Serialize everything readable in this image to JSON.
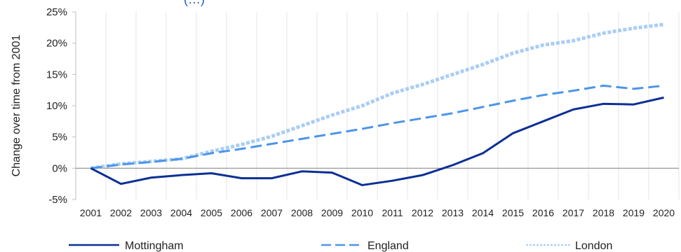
{
  "chart_data": {
    "type": "line",
    "title_fragment": "(…)",
    "ylabel": "Change over  time from 2001",
    "xlabel": "",
    "ylim": [
      -5,
      25
    ],
    "y_ticks": [
      -5,
      0,
      5,
      10,
      15,
      20,
      25
    ],
    "y_tick_suffix": "%",
    "x": [
      "2001",
      "2002",
      "2003",
      "2004",
      "2005",
      "2006",
      "2007",
      "2008",
      "2009",
      "2010",
      "2011",
      "2012",
      "2013",
      "2014",
      "2015",
      "2016",
      "2017",
      "2018",
      "2019",
      "2020"
    ],
    "grid": "vertical",
    "legend_position": "bottom",
    "series": [
      {
        "name": "Mottingham",
        "color": "#0b2f94",
        "style": "solid",
        "values": [
          0,
          -2.5,
          -1.5,
          -1.1,
          -0.8,
          -1.6,
          -1.6,
          -0.5,
          -0.7,
          -2.7,
          -2.0,
          -1.1,
          0.5,
          2.4,
          5.6,
          7.5,
          9.4,
          10.3,
          10.2,
          11.3
        ]
      },
      {
        "name": "England",
        "color": "#4b95e8",
        "style": "dashed",
        "values": [
          0,
          0.6,
          1.0,
          1.5,
          2.4,
          3.1,
          3.9,
          4.7,
          5.5,
          6.3,
          7.2,
          8.0,
          8.8,
          9.8,
          10.8,
          11.7,
          12.4,
          13.2,
          12.7,
          13.2
        ]
      },
      {
        "name": "London",
        "color": "#a9cdf5",
        "style": "dotted",
        "values": [
          0,
          0.7,
          1.1,
          1.5,
          2.7,
          3.8,
          5.1,
          6.8,
          8.5,
          10.0,
          12.0,
          13.4,
          15.0,
          16.6,
          18.4,
          19.7,
          20.4,
          21.6,
          22.4,
          23.0
        ]
      }
    ]
  }
}
